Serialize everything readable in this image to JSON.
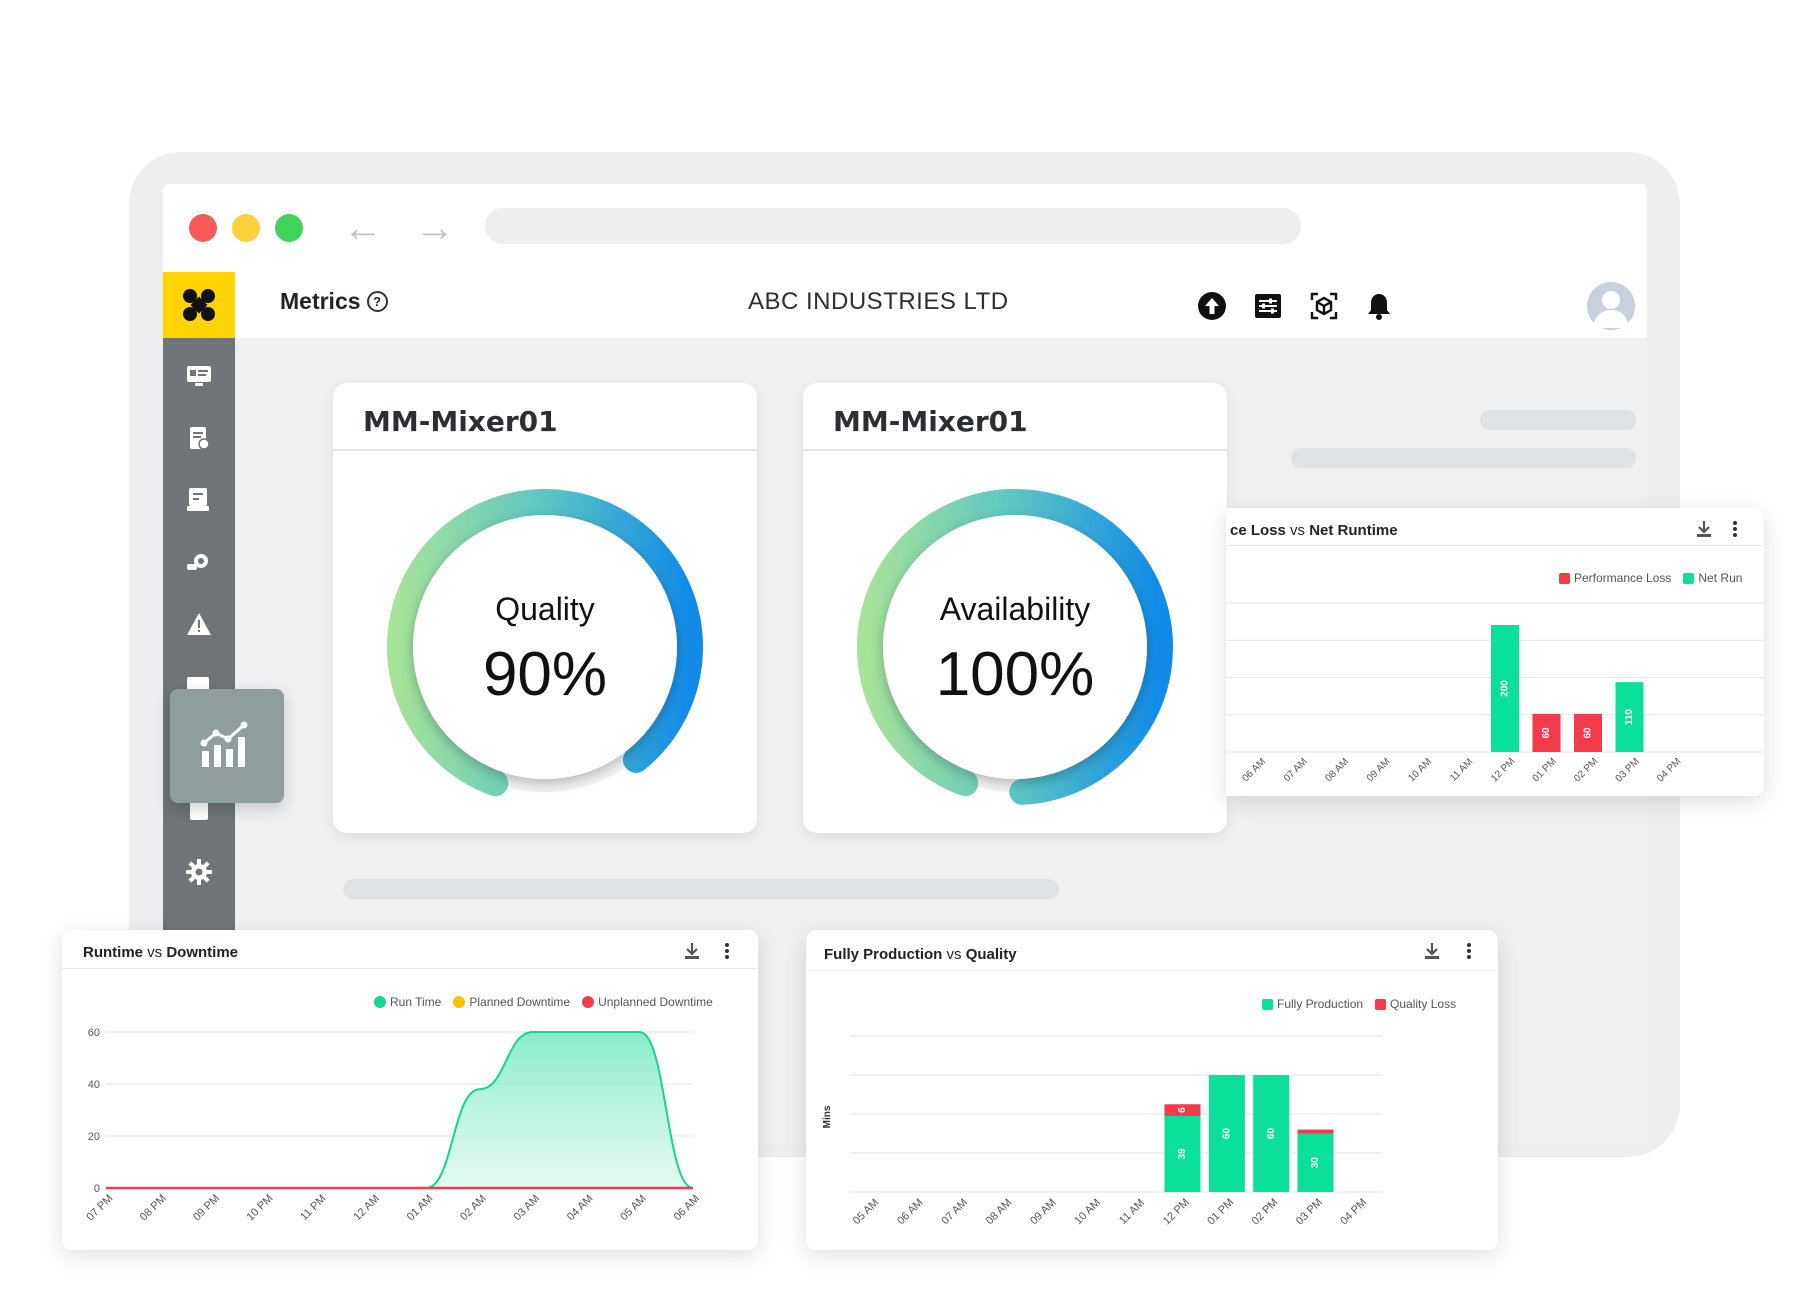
{
  "header": {
    "page_title": "Metrics",
    "company": "ABC INDUSTRIES LTD",
    "icons": [
      "upload-icon",
      "sliders-icon",
      "scan-cube-icon",
      "bell-icon"
    ]
  },
  "sidebar": {
    "items": [
      "dashboard-icon",
      "reports-icon",
      "checklist-icon",
      "machine-icon",
      "alert-icon",
      "gauge-icon",
      "metrics-icon",
      "document-icon",
      "settings-icon"
    ],
    "active": "metrics-icon"
  },
  "gauges": [
    {
      "title": "MM-Mixer01",
      "label": "Quality",
      "value_text": "90%",
      "value": 90
    },
    {
      "title": "MM-Mixer01",
      "label": "Availability",
      "value_text": "100%",
      "value": 100
    }
  ],
  "colors": {
    "green": "#0be09a",
    "red": "#f23b4b",
    "yellow": "#ffd400",
    "logo": "#ffd400"
  },
  "chart_data": [
    {
      "type": "bar",
      "title_part1": "ce Loss",
      "title_vs": "vs",
      "title_part2": "Net Runtime",
      "legend": [
        "Performance Loss",
        "Net Run"
      ],
      "categories": [
        "06 AM",
        "07 AM",
        "08 AM",
        "09 AM",
        "10 AM",
        "11 AM",
        "12 PM",
        "01 PM",
        "02 PM",
        "03 PM",
        "04 PM"
      ],
      "series": [
        {
          "name": "Net Run",
          "color": "#0be09a",
          "values": [
            0,
            0,
            0,
            0,
            0,
            0,
            200,
            0,
            0,
            110,
            0
          ]
        },
        {
          "name": "Performance Loss",
          "color": "#f23b4b",
          "values": [
            0,
            0,
            0,
            0,
            0,
            0,
            0,
            60,
            60,
            0,
            0
          ]
        }
      ]
    },
    {
      "type": "area",
      "title_part1": "Runtime",
      "title_vs": "vs",
      "title_part2": "Downtime",
      "legend": [
        "Run Time",
        "Planned Downtime",
        "Unplanned Downtime"
      ],
      "categories": [
        "07 PM",
        "08 PM",
        "09 PM",
        "10 PM",
        "11 PM",
        "12 AM",
        "01 AM",
        "02 AM",
        "03 AM",
        "04 AM",
        "05 AM",
        "06 AM"
      ],
      "y_ticks": [
        0,
        20,
        40,
        60
      ],
      "ylim": [
        0,
        60
      ],
      "series": [
        {
          "name": "Run Time",
          "color": "#16d58f",
          "values": [
            0,
            0,
            0,
            0,
            0,
            0,
            0,
            38,
            60,
            60,
            60,
            0
          ]
        },
        {
          "name": "Planned Downtime",
          "color": "#ffc107",
          "values": [
            0,
            0,
            0,
            0,
            0,
            0,
            0,
            0,
            0,
            0,
            0,
            0
          ]
        },
        {
          "name": "Unplanned Downtime",
          "color": "#f23b4b",
          "values": [
            0,
            0,
            0,
            0,
            0,
            0,
            0,
            0,
            0,
            0,
            0,
            0
          ]
        }
      ]
    },
    {
      "type": "bar",
      "stacked": true,
      "title_part1": "Fully Production",
      "title_vs": "vs",
      "title_part2": "Quality",
      "ylabel": "Mins",
      "legend": [
        "Fully Production",
        "Quality Loss"
      ],
      "categories": [
        "05 AM",
        "06 AM",
        "07 AM",
        "08 AM",
        "09 AM",
        "10 AM",
        "11 AM",
        "12 PM",
        "01 PM",
        "02 PM",
        "03 PM",
        "04 PM"
      ],
      "series": [
        {
          "name": "Fully Production",
          "color": "#0be09a",
          "values": [
            0,
            0,
            0,
            0,
            0,
            0,
            0,
            39,
            60,
            60,
            30,
            0
          ]
        },
        {
          "name": "Quality Loss",
          "color": "#f23b4b",
          "values": [
            0,
            0,
            0,
            0,
            0,
            0,
            0,
            6,
            0,
            0,
            2,
            0
          ]
        }
      ]
    }
  ]
}
